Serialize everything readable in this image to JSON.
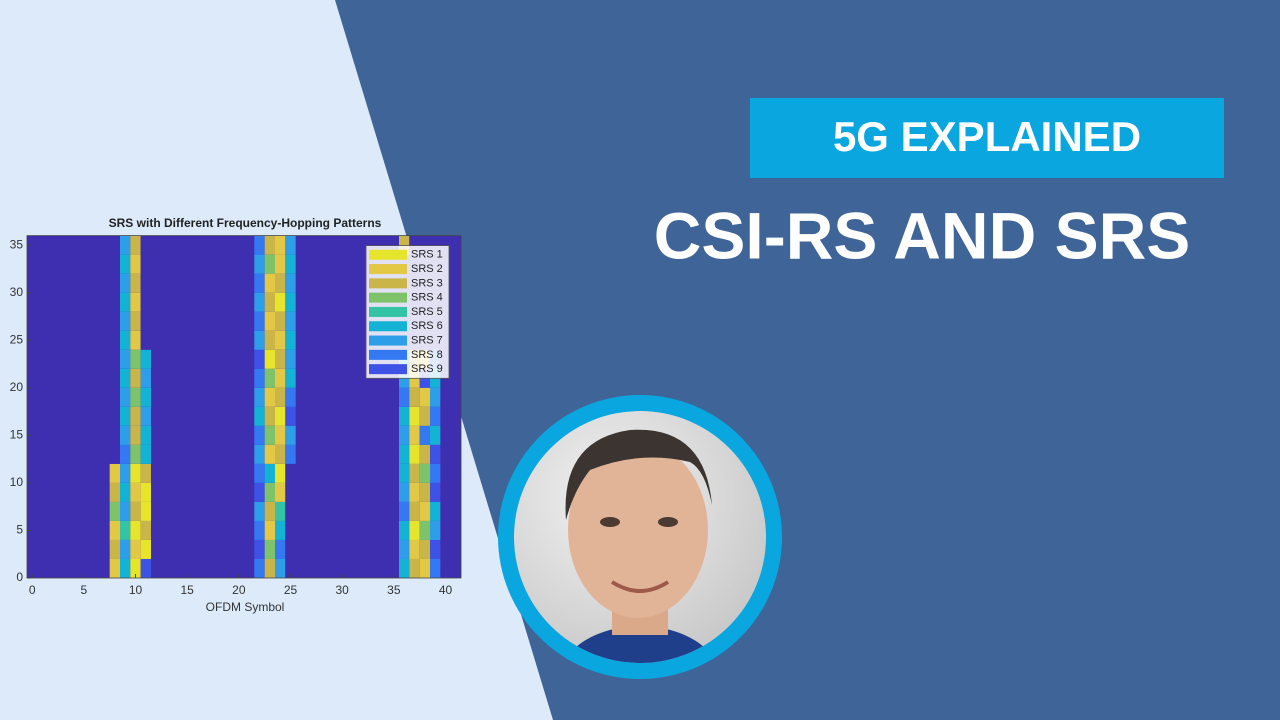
{
  "banner": {
    "tag": "5G EXPLAINED",
    "title": "CSI-RS AND SRS"
  },
  "chart_data": {
    "type": "heatmap",
    "title": "SRS with Different Frequency-Hopping Patterns",
    "x_label": "OFDM Symbol",
    "x": [
      8,
      9,
      10,
      11,
      22,
      23,
      24,
      25,
      36,
      37,
      38,
      39
    ],
    "y_bins": [
      0,
      2,
      4,
      6,
      8,
      10,
      12,
      14,
      16,
      18,
      20,
      22,
      24,
      26,
      28,
      30,
      32,
      34,
      36
    ],
    "z": [
      [
        2,
        6,
        1,
        9,
        8,
        3,
        7,
        0,
        6,
        3,
        2,
        8
      ],
      [
        3,
        7,
        2,
        1,
        9,
        4,
        8,
        0,
        7,
        2,
        3,
        9
      ],
      [
        2,
        5,
        1,
        3,
        8,
        2,
        6,
        0,
        6,
        1,
        4,
        7
      ],
      [
        4,
        7,
        3,
        1,
        7,
        3,
        5,
        0,
        8,
        3,
        2,
        6
      ],
      [
        3,
        6,
        2,
        1,
        9,
        4,
        2,
        0,
        7,
        2,
        3,
        9
      ],
      [
        2,
        7,
        1,
        3,
        8,
        6,
        1,
        0,
        6,
        3,
        4,
        8
      ],
      [
        0,
        8,
        4,
        6,
        7,
        2,
        3,
        8,
        6,
        1,
        3,
        9
      ],
      [
        0,
        7,
        3,
        6,
        8,
        4,
        2,
        7,
        7,
        2,
        8,
        6
      ],
      [
        0,
        6,
        3,
        7,
        6,
        3,
        1,
        9,
        6,
        1,
        3,
        8
      ],
      [
        0,
        7,
        4,
        6,
        7,
        2,
        3,
        8,
        8,
        3,
        2,
        7
      ],
      [
        0,
        6,
        3,
        7,
        8,
        4,
        2,
        6,
        7,
        2,
        9,
        6
      ],
      [
        0,
        7,
        4,
        6,
        9,
        1,
        3,
        7,
        6,
        3,
        2,
        8
      ],
      [
        0,
        6,
        2,
        0,
        7,
        3,
        2,
        6,
        0,
        0,
        0,
        0
      ],
      [
        0,
        7,
        3,
        0,
        8,
        2,
        3,
        7,
        0,
        0,
        0,
        0
      ],
      [
        0,
        6,
        2,
        0,
        7,
        3,
        1,
        6,
        0,
        0,
        0,
        0
      ],
      [
        0,
        7,
        3,
        0,
        8,
        2,
        3,
        7,
        0,
        0,
        0,
        0
      ],
      [
        0,
        6,
        2,
        0,
        7,
        4,
        2,
        6,
        0,
        0,
        0,
        0
      ],
      [
        0,
        7,
        3,
        0,
        8,
        3,
        2,
        7,
        3,
        0,
        0,
        0
      ]
    ],
    "empty_color": "#3e2fb0",
    "classes": [
      {
        "name": "SRS 1",
        "color": "#e6e52c"
      },
      {
        "name": "SRS 2",
        "color": "#e3c845"
      },
      {
        "name": "SRS 3",
        "color": "#c9b548"
      },
      {
        "name": "SRS 4",
        "color": "#7ec36a"
      },
      {
        "name": "SRS 5",
        "color": "#34c3a4"
      },
      {
        "name": "SRS 6",
        "color": "#14b2d4"
      },
      {
        "name": "SRS 7",
        "color": "#2e9ee8"
      },
      {
        "name": "SRS 8",
        "color": "#3478f2"
      },
      {
        "name": "SRS 9",
        "color": "#3f52e6"
      }
    ],
    "xlim": [
      -0.5,
      41.5
    ],
    "ylim": [
      0,
      36
    ],
    "xticks": [
      0,
      5,
      10,
      15,
      20,
      25,
      30,
      35,
      40
    ],
    "yticks": [
      0,
      5,
      10,
      15,
      20,
      25,
      30,
      35
    ],
    "legend": "upper right"
  }
}
